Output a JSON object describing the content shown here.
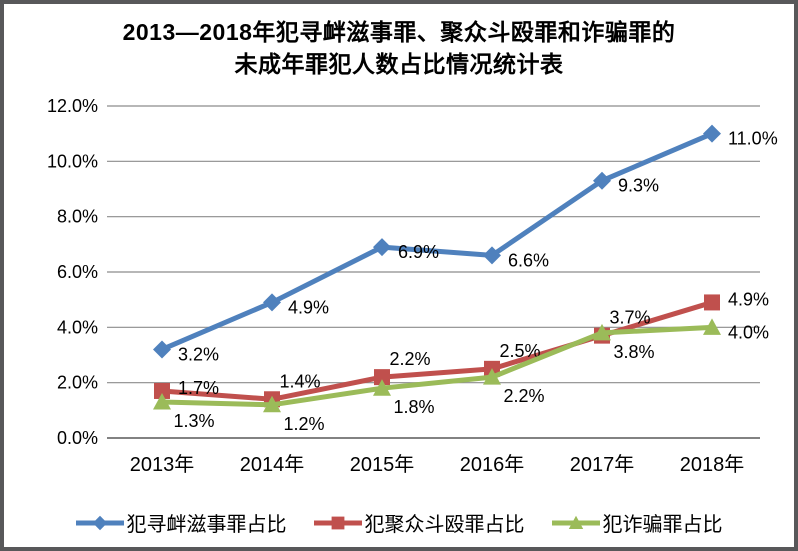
{
  "title": {
    "line1": "2013—2018年犯寻衅滋事罪、聚众斗殴罪和诈骗罪的",
    "line2": "未成年罪犯人数占比情况统计表"
  },
  "chart_data": {
    "type": "line",
    "categories": [
      "2013年",
      "2014年",
      "2015年",
      "2016年",
      "2017年",
      "2018年"
    ],
    "series": [
      {
        "name": "犯寻衅滋事罪占比",
        "values": [
          3.2,
          4.9,
          6.9,
          6.6,
          9.3,
          11.0
        ],
        "color": "#4F81BD",
        "marker": "diamond",
        "label_positions": [
          "right",
          "right",
          "right",
          "right",
          "right",
          "right"
        ]
      },
      {
        "name": "犯聚众斗殴罪占比",
        "values": [
          1.7,
          1.4,
          2.2,
          2.5,
          3.7,
          4.9
        ],
        "color": "#C0504D",
        "marker": "square",
        "label_positions": [
          "right-up",
          "above",
          "above",
          "above",
          "above",
          "right-up"
        ]
      },
      {
        "name": "犯诈骗罪占比",
        "values": [
          1.3,
          1.2,
          1.8,
          2.2,
          3.8,
          4.0
        ],
        "color": "#9BBB59",
        "marker": "triangle",
        "label_positions": [
          "below",
          "below",
          "below",
          "below",
          "below",
          "right"
        ]
      }
    ],
    "ylim": [
      0,
      12
    ],
    "ytick_step": 2,
    "yticks": [
      "0.0%",
      "2.0%",
      "4.0%",
      "6.0%",
      "8.0%",
      "10.0%",
      "12.0%"
    ],
    "data_label_suffix": "%",
    "grid": true,
    "legend_position": "bottom"
  },
  "colors": {
    "gridline": "#8c8c8c",
    "axis_line": "#595959",
    "frame_border": "#58585a",
    "text": "#000000"
  }
}
